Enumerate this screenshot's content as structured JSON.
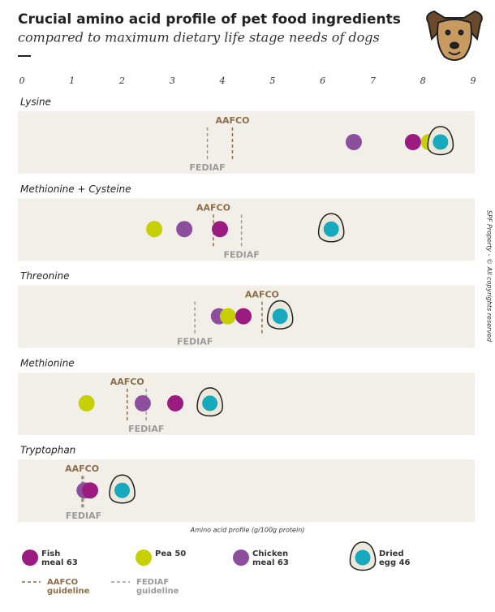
{
  "chart_data": {
    "type": "dot",
    "title": "Crucial amino acid profile of pet food ingredients",
    "subtitle": "compared to maximum dietary life stage needs of dogs",
    "xlabel": "Amino acid profile (g/100g protein)",
    "note": "SPF Property - © All copyrights reserved",
    "xlim": [
      0,
      9
    ],
    "xticks": [
      0,
      1,
      2,
      3,
      4,
      5,
      6,
      7,
      8,
      9
    ],
    "categories": [
      "Lysine",
      "Methionine + Cysteine",
      "Threonine",
      "Methionine",
      "Tryptophan"
    ],
    "series": [
      {
        "name": "Fish meal 63",
        "color": "#9b1b80",
        "marker": "dot",
        "values": [
          7.8,
          3.95,
          4.42,
          3.06,
          1.36
        ]
      },
      {
        "name": "Pea 50",
        "color": "#c6d000",
        "marker": "dot",
        "values": [
          8.12,
          2.64,
          4.11,
          1.29,
          null
        ]
      },
      {
        "name": "Chicken meal 63",
        "color": "#8c4f9e",
        "marker": "dot",
        "values": [
          6.62,
          3.24,
          3.93,
          2.41,
          1.25
        ]
      },
      {
        "name": "Dried egg 46",
        "color": "#17aabf",
        "marker": "egg",
        "values": [
          8.35,
          6.17,
          5.15,
          3.75,
          2.0
        ]
      }
    ],
    "guidelines": [
      {
        "name": "AAFCO guideline",
        "label": "AAFCO",
        "color": "#8b6e48",
        "position": "top",
        "values": [
          4.2,
          3.82,
          4.79,
          2.1,
          1.2
        ]
      },
      {
        "name": "FEDIAF guideline",
        "label": "FEDIAF",
        "color": "#9a9a9a",
        "position": "bottom",
        "values": [
          3.7,
          4.38,
          3.45,
          2.48,
          1.23
        ]
      }
    ]
  }
}
